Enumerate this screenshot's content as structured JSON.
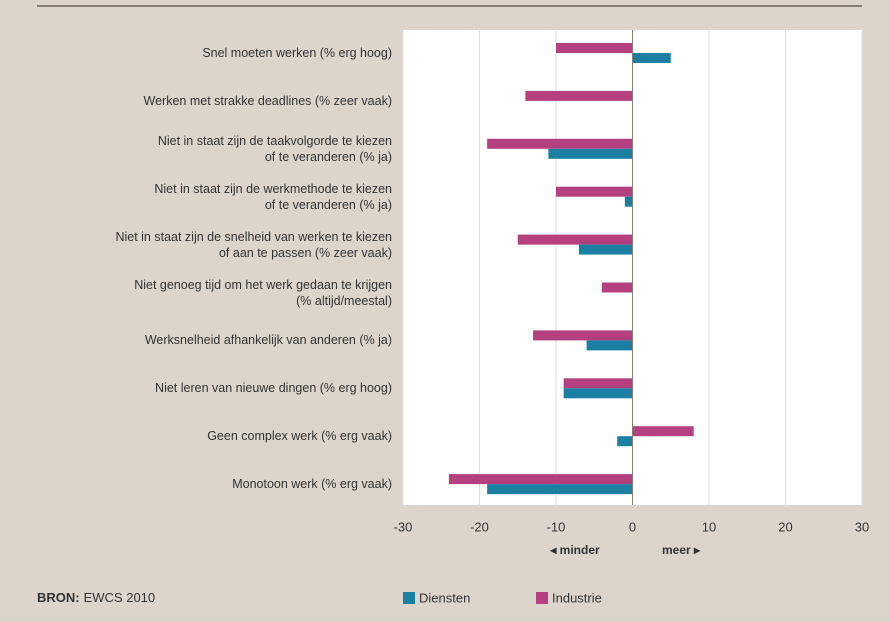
{
  "chart_data": {
    "type": "barh",
    "categories": [
      "Snel moeten werken (% erg hoog)",
      "Werken met strakke deadlines (% zeer vaak)",
      "Niet in staat zijn de taakvolgorde te kiezen\nof te veranderen (% ja)",
      "Niet in staat zijn de werkmethode te kiezen\nof te veranderen (% ja)",
      "Niet in staat zijn de snelheid van werken te kiezen\nof aan te passen (% zeer vaak)",
      "Niet genoeg tijd om het werk gedaan te krijgen\n(% altijd/meestal)",
      "Werksnelheid afhankelijk van anderen (% ja)",
      "Niet leren van nieuwe dingen (% erg hoog)",
      "Geen complex werk (% erg vaak)",
      "Monotoon werk (% erg vaak)"
    ],
    "series": [
      {
        "name": "Industrie",
        "color": "#b5407f",
        "values": [
          -10,
          -14,
          -19,
          -10,
          -15,
          -4,
          -13,
          -9,
          8,
          -24
        ]
      },
      {
        "name": "Diensten",
        "color": "#1a7fa0",
        "values": [
          5,
          0,
          -11,
          -1,
          -7,
          0,
          -6,
          -9,
          -2,
          -19
        ]
      }
    ],
    "xlim": [
      -30,
      30
    ],
    "xticks": [
      -30,
      -20,
      -10,
      0,
      10,
      20,
      30
    ],
    "grid": true,
    "annotations": [
      "◂ minder",
      "meer ▸"
    ],
    "legend_order": [
      1,
      0
    ],
    "source_label": "BRON:",
    "source": "EWCS 2010"
  }
}
